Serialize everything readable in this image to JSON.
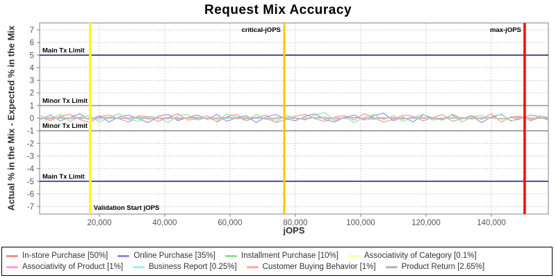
{
  "chart_data": {
    "type": "line",
    "title": "Request Mix Accuracy",
    "xlabel": "jOPS",
    "ylabel": "Actual % in the Mix - Expected % in the Mix",
    "xlim": [
      1700,
      157450
    ],
    "ylim": [
      -7.6,
      7.55
    ],
    "grid": "dashed",
    "grid_color": "#cccccc",
    "axis_color": "#808080",
    "tick_label_color": "#555555",
    "legend_position": "bottom",
    "xticks": {
      "values": [
        20000,
        40000,
        60000,
        80000,
        100000,
        120000,
        140000
      ],
      "labels": [
        "20,000",
        "40,000",
        "60,000",
        "80,000",
        "100,000",
        "120,000",
        "140,000"
      ]
    },
    "yticks": {
      "values": [
        -7,
        -6,
        -5,
        -4,
        -3,
        -2,
        -1,
        0,
        1,
        2,
        3,
        4,
        5,
        6,
        7
      ],
      "labels": [
        "-7",
        "-6",
        "-5",
        "-4",
        "-3",
        "-2",
        "-1",
        "0",
        "1",
        "2",
        "3",
        "4",
        "5",
        "6",
        "7"
      ]
    },
    "limit_lines": [
      {
        "label": "Main Tx Limit",
        "y": 5,
        "color": "#000080"
      },
      {
        "label": "Minor Tx Limit",
        "y": 1,
        "color": "#808080"
      },
      {
        "label": "Minor Tx Limit",
        "y": -1,
        "color": "#808080"
      },
      {
        "label": "Main Tx Limit",
        "y": -5,
        "color": "#000080"
      }
    ],
    "marker_lines": [
      {
        "label": "Validation Start jOPS",
        "x": 17200,
        "color": "#ffff00",
        "width": 3.5,
        "label_position": "bottom-right"
      },
      {
        "label": "critical-jOPS",
        "x": 76600,
        "color": "#ffc400",
        "width": 3,
        "label_position": "top-left"
      },
      {
        "label": "max-jOPS",
        "x": 150200,
        "color": "#ff0000",
        "width": 3.5,
        "label_position": "top-left"
      }
    ],
    "x": [
      2000,
      5000,
      8000,
      11000,
      14000,
      17000,
      20000,
      23000,
      26000,
      29000,
      32000,
      35000,
      38000,
      41000,
      44000,
      47000,
      50000,
      53000,
      56000,
      59000,
      62000,
      65000,
      68000,
      71000,
      74000,
      77000,
      80000,
      83000,
      86000,
      89000,
      92000,
      95000,
      98000,
      101000,
      104000,
      107000,
      110000,
      113000,
      116000,
      119000,
      122000,
      125000,
      128000,
      131000,
      134000,
      137000,
      140000,
      143000,
      146000,
      149000,
      152000,
      155000,
      157400
    ],
    "series": [
      {
        "name": "In-store Purchase",
        "expected_mix": "50%",
        "label": "In-store Purchase [50%]",
        "color": "#f88c8c",
        "values": [
          0.05,
          -0.2,
          0.15,
          0.3,
          -0.1,
          -0.35,
          0.1,
          0.25,
          -0.05,
          -0.3,
          0.2,
          0.1,
          -0.25,
          0.05,
          0.35,
          -0.15,
          -0.05,
          0.2,
          -0.3,
          0.1,
          0.3,
          -0.2,
          0.05,
          0.25,
          -0.35,
          -0.1,
          0.15,
          0.3,
          -0.05,
          -0.25,
          0.1,
          0.2,
          -0.15,
          0.35,
          0.05,
          -0.3,
          -0.1,
          0.25,
          0.15,
          -0.2,
          0.05,
          0.3,
          -0.25,
          -0.05,
          0.2,
          -0.1,
          0.35,
          -0.3,
          0.1,
          0.15,
          -0.2,
          0.05,
          0.1
        ]
      },
      {
        "name": "Online Purchase",
        "expected_mix": "35%",
        "label": "Online Purchase [35%]",
        "color": "#8c8ce8",
        "values": [
          -0.1,
          0.25,
          -0.2,
          0.05,
          0.35,
          -0.15,
          0.2,
          -0.3,
          0.1,
          0.25,
          -0.05,
          -0.35,
          0.15,
          0.3,
          -0.2,
          0.05,
          0.25,
          -0.1,
          0.3,
          -0.25,
          0.05,
          0.2,
          -0.35,
          0.1,
          0.3,
          -0.05,
          -0.2,
          0.15,
          0.35,
          -0.1,
          -0.3,
          0.05,
          0.25,
          -0.15,
          0.2,
          0.4,
          -0.2,
          0.1,
          -0.3,
          0.25,
          0.05,
          -0.15,
          0.3,
          -0.05,
          0.2,
          -0.35,
          0.1,
          0.3,
          -0.2,
          -0.05,
          0.25,
          0.1,
          -0.15
        ]
      },
      {
        "name": "Installment Purchase",
        "expected_mix": "10%",
        "label": "Installment Purchase [10%]",
        "color": "#8fe08f",
        "values": [
          0.2,
          -0.05,
          0.3,
          -0.25,
          0.1,
          0.2,
          -0.3,
          0.05,
          0.35,
          -0.1,
          -0.25,
          0.15,
          0.05,
          -0.35,
          0.2,
          0.3,
          -0.15,
          0.05,
          -0.25,
          0.35,
          0.1,
          -0.2,
          0.3,
          -0.05,
          -0.3,
          0.2,
          0.05,
          -0.15,
          0.25,
          0.45,
          -0.2,
          0.1,
          -0.35,
          0.05,
          0.3,
          -0.1,
          0.2,
          -0.25,
          0.05,
          0.3,
          -0.15,
          -0.05,
          0.25,
          -0.3,
          0.1,
          0.2,
          -0.05,
          0.35,
          -0.25,
          0.1,
          -0.15,
          0.2,
          0.05
        ]
      },
      {
        "name": "Associativity of Category",
        "expected_mix": "0.1%",
        "label": "Associativity of Category [0.1%]",
        "color": "#ffff9c",
        "values": [
          0.02,
          -0.03,
          0.01,
          0.04,
          -0.02,
          -0.05,
          0.03,
          0.01,
          -0.04,
          0.02,
          0.05,
          -0.01,
          -0.03,
          0.02,
          0.04,
          -0.05,
          0.01,
          0.03,
          -0.02,
          0.05,
          -0.04,
          0.01,
          0.02,
          -0.05,
          0.03,
          -0.01,
          0.04,
          -0.03,
          0.02,
          0.05,
          -0.02,
          -0.04,
          0.01,
          0.03,
          -0.05,
          0.02,
          0.04,
          -0.01,
          -0.03,
          0.05,
          0.02,
          -0.04,
          0.01,
          0.03,
          -0.02,
          0.04,
          -0.05,
          0.01,
          0.02,
          -0.03,
          0.04,
          -0.01,
          0.02
        ]
      },
      {
        "name": "Associativity of Product",
        "expected_mix": "1%",
        "label": "Associativity of Product [1%]",
        "color": "#ff9cec",
        "values": [
          -0.04,
          0.06,
          -0.02,
          0.08,
          -0.06,
          0.03,
          -0.08,
          0.05,
          0.02,
          -0.07,
          0.04,
          0.08,
          -0.03,
          -0.06,
          0.05,
          -0.02,
          0.07,
          -0.08,
          0.03,
          0.06,
          -0.05,
          0.02,
          0.08,
          -0.04,
          -0.07,
          0.05,
          0.03,
          -0.08,
          0.06,
          -0.02,
          0.07,
          -0.05,
          0.04,
          -0.08,
          0.02,
          0.06,
          -0.03,
          -0.07,
          0.08,
          0.05,
          -0.06,
          0.03,
          -0.02,
          0.07,
          -0.08,
          0.04,
          0.06,
          -0.05,
          0.02,
          0.08,
          -0.04,
          0.06,
          -0.03
        ]
      },
      {
        "name": "Business Report",
        "expected_mix": "0.25%",
        "label": "Business Report [0.25%]",
        "color": "#9cf0f0",
        "values": [
          0.01,
          0.03,
          -0.02,
          -0.04,
          0.02,
          0.05,
          -0.01,
          -0.03,
          0.04,
          0.01,
          -0.05,
          0.02,
          0.03,
          -0.01,
          -0.04,
          0.05,
          0.01,
          -0.02,
          0.04,
          -0.03,
          0.02,
          0.05,
          -0.04,
          0.01,
          -0.02,
          0.03,
          -0.05,
          0.04,
          0.01,
          -0.03,
          0.05,
          -0.02,
          0.01,
          0.04,
          -0.05,
          -0.01,
          0.03,
          0.02,
          -0.04,
          0.01,
          0.05,
          -0.03,
          -0.01,
          0.02,
          0.04,
          -0.05,
          0.03,
          -0.02,
          0.01,
          0.04,
          -0.03,
          0.02,
          0.01
        ]
      },
      {
        "name": "Customer Buying Behavior",
        "expected_mix": "1%",
        "label": "Customer Buying Behavior [1%]",
        "color": "#ffa8a8",
        "values": [
          0.05,
          -0.08,
          0.1,
          -0.04,
          0.08,
          -0.1,
          0.03,
          0.09,
          -0.06,
          0.04,
          0.1,
          -0.08,
          -0.03,
          0.07,
          -0.1,
          0.05,
          0.09,
          -0.04,
          -0.08,
          0.1,
          0.03,
          -0.06,
          0.08,
          -0.1,
          0.04,
          0.07,
          -0.03,
          -0.09,
          0.05,
          0.1,
          -0.07,
          0.04,
          0.08,
          -0.05,
          -0.1,
          0.06,
          0.03,
          -0.08,
          0.09,
          -0.04,
          0.07,
          -0.1,
          0.05,
          0.08,
          -0.06,
          -0.03,
          0.1,
          -0.08,
          0.04,
          0.06,
          -0.05,
          0.08,
          0.03
        ]
      },
      {
        "name": "Product Return",
        "expected_mix": "2.65%",
        "label": "Product Return [2.65%]",
        "color": "#b4b4b4",
        "values": [
          -0.02,
          0.01,
          0.03,
          -0.04,
          0.02,
          -0.05,
          0.04,
          -0.01,
          -0.03,
          0.05,
          0.02,
          -0.04,
          0.01,
          0.03,
          -0.02,
          0.05,
          -0.04,
          0.02,
          -0.01,
          0.03,
          -0.05,
          0.04,
          0.01,
          -0.03,
          0.02,
          0.05,
          -0.02,
          -0.04,
          0.03,
          0.01,
          -0.05,
          0.02,
          0.04,
          -0.01,
          0.03,
          -0.04,
          0.05,
          -0.02,
          0.01,
          0.04,
          -0.03,
          0.01,
          0.05,
          -0.04,
          -0.02,
          0.03,
          0.02,
          -0.05,
          0.04,
          -0.01,
          0.03,
          -0.02,
          0.01
        ]
      }
    ]
  }
}
